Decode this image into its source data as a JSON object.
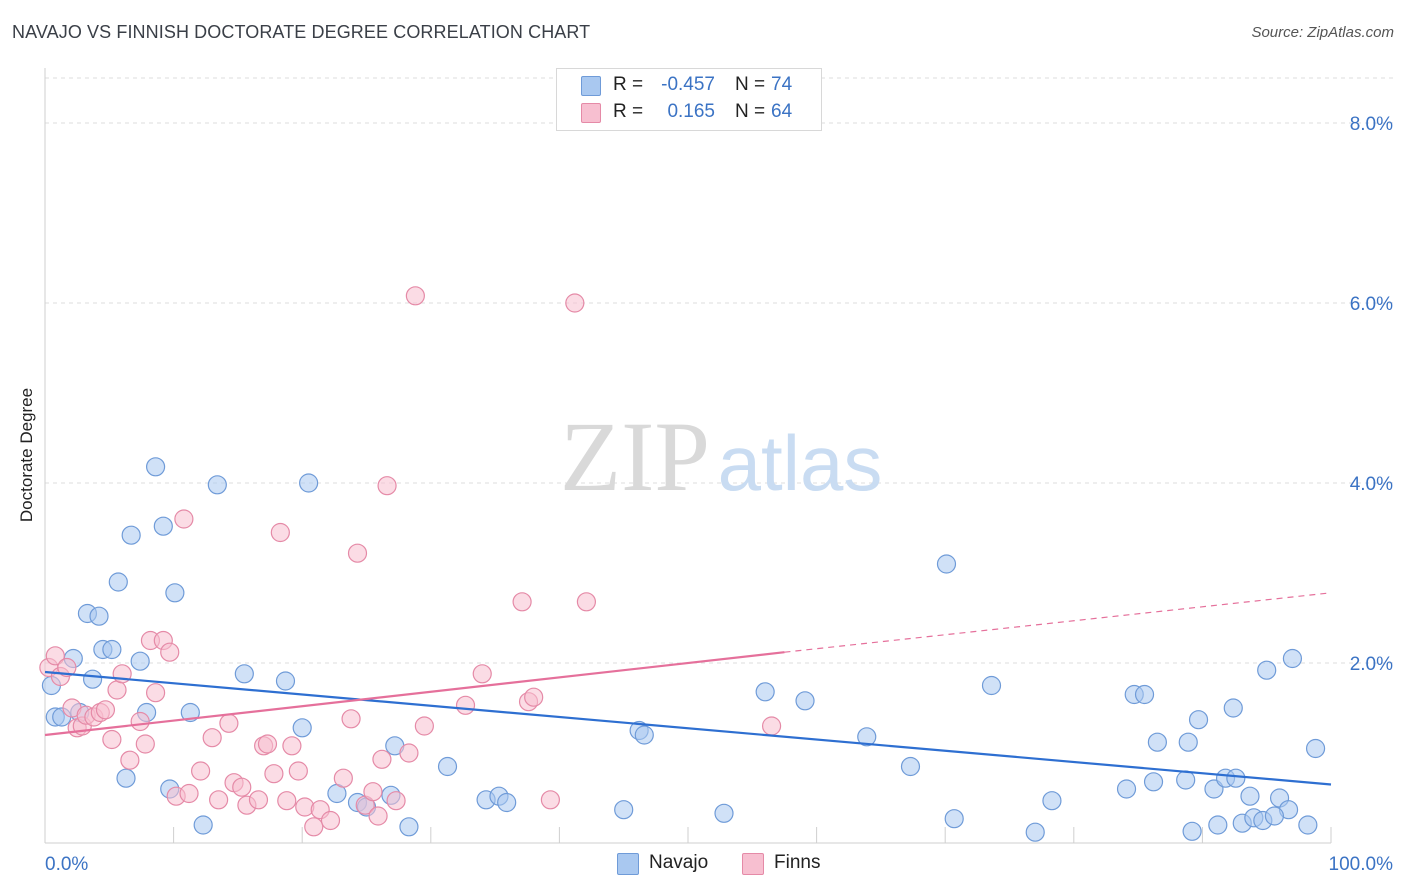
{
  "header": {
    "title": "NAVAJO VS FINNISH DOCTORATE DEGREE CORRELATION CHART",
    "source": "Source: ZipAtlas.com"
  },
  "watermark": {
    "zip": "ZIP",
    "atlas": "atlas"
  },
  "legend": [
    {
      "r_label": "R =",
      "r_value": "-0.457",
      "n_label": "N =",
      "n_value": "74",
      "color": "#a9c8f0",
      "border": "#6f9bd8"
    },
    {
      "r_label": "R =",
      "r_value": "0.165",
      "n_label": "N =",
      "n_value": "64",
      "color": "#f7bfd0",
      "border": "#e58aa7"
    }
  ],
  "bottom_legend": [
    {
      "label": "Navajo",
      "color": "#a9c8f0"
    },
    {
      "label": "Finns",
      "color": "#f7bfd0"
    }
  ],
  "chart_data": {
    "type": "scatter",
    "title": "NAVAJO VS FINNISH DOCTORATE DEGREE CORRELATION CHART",
    "xlabel": "",
    "ylabel": "Doctorate Degree",
    "xlim": [
      0,
      100
    ],
    "ylim": [
      0,
      8.5
    ],
    "x_tick_labels": [
      "0.0%",
      "100.0%"
    ],
    "y_ticks": [
      2.0,
      4.0,
      6.0,
      8.0
    ],
    "y_tick_labels": [
      "2.0%",
      "4.0%",
      "6.0%",
      "8.0%"
    ],
    "grid": "horizontal dashed",
    "legend_placement": "top-center",
    "series": [
      {
        "name": "Navajo",
        "color": "#6f9bd8",
        "fill": "#a9c8f0",
        "trend": {
          "x": [
            0,
            100
          ],
          "y": [
            1.9,
            0.65
          ],
          "style": "solid",
          "color": "#2e6fd1"
        },
        "points": [
          [
            0.5,
            1.75
          ],
          [
            0.8,
            1.4
          ],
          [
            1.3,
            1.4
          ],
          [
            2.2,
            2.05
          ],
          [
            2.7,
            1.45
          ],
          [
            3.3,
            2.55
          ],
          [
            3.7,
            1.82
          ],
          [
            4.2,
            2.52
          ],
          [
            4.5,
            2.15
          ],
          [
            5.2,
            2.15
          ],
          [
            5.7,
            2.9
          ],
          [
            6.3,
            0.72
          ],
          [
            6.7,
            3.42
          ],
          [
            7.4,
            2.02
          ],
          [
            7.9,
            1.45
          ],
          [
            8.6,
            4.18
          ],
          [
            9.2,
            3.52
          ],
          [
            9.7,
            0.6
          ],
          [
            10.1,
            2.78
          ],
          [
            11.3,
            1.45
          ],
          [
            12.3,
            0.2
          ],
          [
            13.4,
            3.98
          ],
          [
            15.5,
            1.88
          ],
          [
            18.7,
            1.8
          ],
          [
            20.0,
            1.28
          ],
          [
            20.5,
            4.0
          ],
          [
            22.7,
            0.55
          ],
          [
            24.3,
            0.45
          ],
          [
            25.0,
            0.4
          ],
          [
            26.9,
            0.53
          ],
          [
            27.2,
            1.08
          ],
          [
            28.3,
            0.18
          ],
          [
            31.3,
            0.85
          ],
          [
            34.3,
            0.48
          ],
          [
            35.3,
            0.52
          ],
          [
            35.9,
            0.45
          ],
          [
            45.0,
            0.37
          ],
          [
            46.2,
            1.25
          ],
          [
            46.6,
            1.2
          ],
          [
            52.8,
            0.33
          ],
          [
            56.0,
            1.68
          ],
          [
            59.1,
            1.58
          ],
          [
            63.9,
            1.18
          ],
          [
            67.3,
            0.85
          ],
          [
            70.1,
            3.1
          ],
          [
            70.7,
            0.27
          ],
          [
            73.6,
            1.75
          ],
          [
            77.0,
            0.12
          ],
          [
            78.3,
            0.47
          ],
          [
            84.1,
            0.6
          ],
          [
            84.7,
            1.65
          ],
          [
            85.5,
            1.65
          ],
          [
            86.2,
            0.68
          ],
          [
            86.5,
            1.12
          ],
          [
            88.7,
            0.7
          ],
          [
            88.9,
            1.12
          ],
          [
            89.2,
            0.13
          ],
          [
            89.7,
            1.37
          ],
          [
            90.9,
            0.6
          ],
          [
            91.2,
            0.2
          ],
          [
            91.8,
            0.72
          ],
          [
            92.4,
            1.5
          ],
          [
            93.1,
            0.22
          ],
          [
            94.0,
            0.28
          ],
          [
            94.7,
            0.25
          ],
          [
            95.0,
            1.92
          ],
          [
            96.0,
            0.5
          ],
          [
            96.7,
            0.37
          ],
          [
            97.0,
            2.05
          ],
          [
            98.2,
            0.2
          ],
          [
            98.8,
            1.05
          ],
          [
            92.6,
            0.72
          ],
          [
            93.7,
            0.52
          ],
          [
            95.6,
            0.3
          ]
        ]
      },
      {
        "name": "Finns",
        "color": "#e58aa7",
        "fill": "#f7bfd0",
        "trend": {
          "x": [
            0,
            57.5,
            100
          ],
          "y": [
            1.2,
            2.12,
            2.78
          ],
          "style": "solid-then-dashed",
          "color": "#e5709b"
        },
        "points": [
          [
            0.3,
            1.95
          ],
          [
            0.8,
            2.08
          ],
          [
            1.2,
            1.85
          ],
          [
            1.7,
            1.95
          ],
          [
            2.1,
            1.5
          ],
          [
            2.5,
            1.28
          ],
          [
            2.9,
            1.3
          ],
          [
            3.2,
            1.42
          ],
          [
            3.8,
            1.4
          ],
          [
            4.3,
            1.45
          ],
          [
            4.7,
            1.48
          ],
          [
            5.2,
            1.15
          ],
          [
            5.6,
            1.7
          ],
          [
            6.0,
            1.88
          ],
          [
            6.6,
            0.92
          ],
          [
            7.4,
            1.35
          ],
          [
            7.8,
            1.1
          ],
          [
            8.2,
            2.25
          ],
          [
            8.6,
            1.67
          ],
          [
            9.2,
            2.25
          ],
          [
            9.7,
            2.12
          ],
          [
            10.2,
            0.52
          ],
          [
            10.8,
            3.6
          ],
          [
            11.2,
            0.55
          ],
          [
            12.1,
            0.8
          ],
          [
            13.0,
            1.17
          ],
          [
            13.5,
            0.48
          ],
          [
            14.3,
            1.33
          ],
          [
            14.7,
            0.67
          ],
          [
            15.3,
            0.62
          ],
          [
            15.7,
            0.42
          ],
          [
            16.6,
            0.48
          ],
          [
            17.0,
            1.08
          ],
          [
            17.3,
            1.1
          ],
          [
            17.8,
            0.77
          ],
          [
            18.3,
            3.45
          ],
          [
            18.8,
            0.47
          ],
          [
            19.2,
            1.08
          ],
          [
            19.7,
            0.8
          ],
          [
            20.2,
            0.4
          ],
          [
            20.9,
            0.18
          ],
          [
            21.4,
            0.37
          ],
          [
            22.2,
            0.25
          ],
          [
            23.2,
            0.72
          ],
          [
            23.8,
            1.38
          ],
          [
            24.3,
            3.22
          ],
          [
            24.9,
            0.42
          ],
          [
            25.5,
            0.57
          ],
          [
            25.9,
            0.3
          ],
          [
            26.2,
            0.93
          ],
          [
            26.6,
            3.97
          ],
          [
            27.3,
            0.47
          ],
          [
            28.3,
            1.0
          ],
          [
            28.8,
            6.08
          ],
          [
            29.5,
            1.3
          ],
          [
            32.7,
            1.53
          ],
          [
            34.0,
            1.88
          ],
          [
            37.1,
            2.68
          ],
          [
            37.6,
            1.57
          ],
          [
            38.0,
            1.62
          ],
          [
            39.3,
            0.48
          ],
          [
            41.2,
            6.0
          ],
          [
            42.1,
            2.68
          ],
          [
            56.5,
            1.3
          ]
        ]
      }
    ]
  }
}
